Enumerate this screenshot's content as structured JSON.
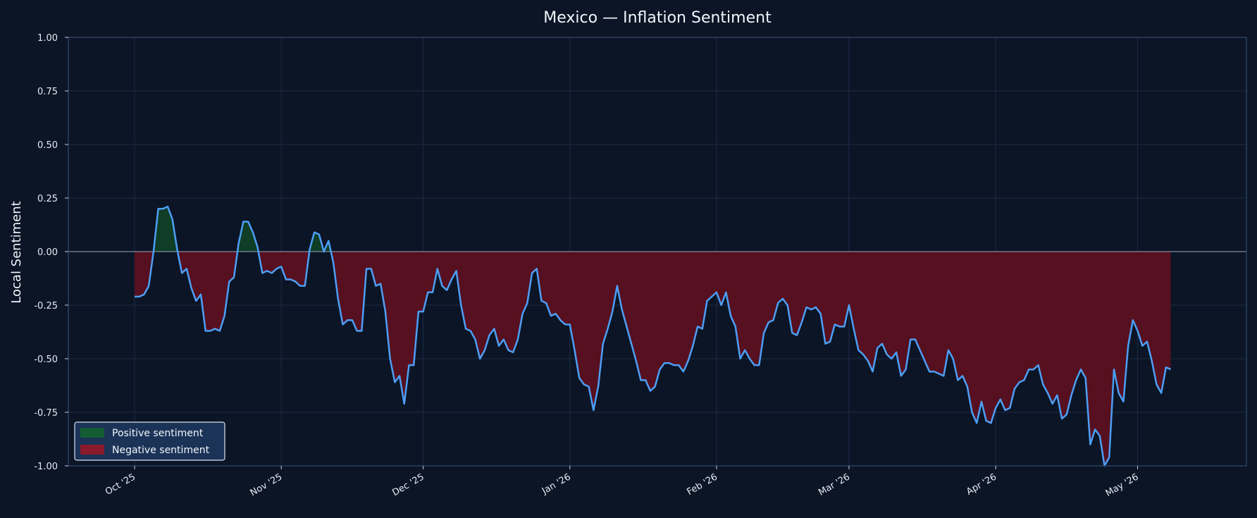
{
  "chart_data": {
    "type": "area",
    "title": "Mexico — Inflation Sentiment",
    "xlabel": "",
    "ylabel": "Local Sentiment",
    "ylim": [
      -1.0,
      1.0
    ],
    "xlim": [
      "2025-09-17",
      "2026-05-24"
    ],
    "y_ticks": [
      1.0,
      0.75,
      0.5,
      0.25,
      0.0,
      -0.25,
      -0.5,
      -0.75,
      -1.0
    ],
    "y_tick_labels": [
      "1.00",
      "0.75",
      "0.50",
      "0.25",
      "0.00",
      "-0.25",
      "-0.50",
      "-0.75",
      "-1.00"
    ],
    "x_ticks": [
      {
        "date": "2025-10-01",
        "label": "Oct '25"
      },
      {
        "date": "2025-11-01",
        "label": "Nov '25"
      },
      {
        "date": "2025-12-01",
        "label": "Dec '25"
      },
      {
        "date": "2026-01-01",
        "label": "Jan '26"
      },
      {
        "date": "2026-02-01",
        "label": "Feb '26"
      },
      {
        "date": "2026-03-01",
        "label": "Mar '26"
      },
      {
        "date": "2026-04-01",
        "label": "Apr '26"
      },
      {
        "date": "2026-05-01",
        "label": "May '26"
      }
    ],
    "grid": true,
    "zero_line": true,
    "legend_position": "lower-left",
    "legend": [
      {
        "label": "Positive sentiment",
        "color": "#145c33"
      },
      {
        "label": "Negative sentiment",
        "color": "#8a1a2c"
      }
    ],
    "colors": {
      "line": "#4d9ef5",
      "positive_fill": "#0f3d26",
      "negative_fill": "#56101f",
      "background": "#0b1526",
      "grid": "#1c2c46",
      "axis": "#2a3f60",
      "zero_line": "#9aa6b8"
    },
    "start_date": "2025-10-01",
    "series": [
      {
        "values": [
          -0.21,
          -0.21,
          -0.2,
          -0.16,
          0.0,
          0.2,
          0.2,
          0.21,
          0.15,
          0.01,
          -0.1,
          -0.08,
          -0.17,
          -0.23,
          -0.2,
          -0.37,
          -0.37,
          -0.36,
          -0.37,
          -0.3,
          -0.14,
          -0.12,
          0.04,
          0.14,
          0.14,
          0.09,
          0.02,
          -0.1,
          -0.09,
          -0.1,
          -0.08,
          -0.07,
          -0.13,
          -0.13,
          -0.14,
          -0.16,
          -0.16,
          0.01,
          0.09,
          0.08,
          0.0,
          0.05,
          -0.05,
          -0.22,
          -0.34,
          -0.32,
          -0.32,
          -0.37,
          -0.37,
          -0.08,
          -0.08,
          -0.16,
          -0.15,
          -0.28,
          -0.5,
          -0.61,
          -0.58,
          -0.71,
          -0.53,
          -0.53,
          -0.28,
          -0.28,
          -0.19,
          -0.19,
          -0.08,
          -0.16,
          -0.18,
          -0.13,
          -0.09,
          -0.25,
          -0.36,
          -0.37,
          -0.41,
          -0.5,
          -0.46,
          -0.39,
          -0.36,
          -0.44,
          -0.41,
          -0.46,
          -0.47,
          -0.41,
          -0.29,
          -0.24,
          -0.1,
          -0.08,
          -0.23,
          -0.24,
          -0.3,
          -0.29,
          -0.32,
          -0.34,
          -0.34,
          -0.46,
          -0.59,
          -0.62,
          -0.63,
          -0.74,
          -0.63,
          -0.43,
          -0.36,
          -0.28,
          -0.16,
          -0.27,
          -0.35,
          -0.43,
          -0.51,
          -0.6,
          -0.6,
          -0.65,
          -0.63,
          -0.55,
          -0.52,
          -0.52,
          -0.53,
          -0.53,
          -0.56,
          -0.51,
          -0.44,
          -0.35,
          -0.36,
          -0.23,
          -0.21,
          -0.19,
          -0.25,
          -0.19,
          -0.3,
          -0.35,
          -0.5,
          -0.46,
          -0.5,
          -0.53,
          -0.53,
          -0.38,
          -0.33,
          -0.32,
          -0.24,
          -0.22,
          -0.25,
          -0.38,
          -0.39,
          -0.33,
          -0.26,
          -0.27,
          -0.26,
          -0.29,
          -0.43,
          -0.42,
          -0.34,
          -0.35,
          -0.35,
          -0.25,
          -0.36,
          -0.46,
          -0.48,
          -0.51,
          -0.56,
          -0.45,
          -0.43,
          -0.48,
          -0.5,
          -0.47,
          -0.58,
          -0.55,
          -0.41,
          -0.41,
          -0.46,
          -0.51,
          -0.56,
          -0.56,
          -0.57,
          -0.58,
          -0.46,
          -0.5,
          -0.6,
          -0.58,
          -0.63,
          -0.75,
          -0.8,
          -0.7,
          -0.79,
          -0.8,
          -0.73,
          -0.69,
          -0.74,
          -0.73,
          -0.64,
          -0.61,
          -0.6,
          -0.55,
          -0.55,
          -0.53,
          -0.62,
          -0.66,
          -0.71,
          -0.67,
          -0.78,
          -0.76,
          -0.67,
          -0.6,
          -0.55,
          -0.59,
          -0.9,
          -0.83,
          -0.86,
          -1.0,
          -0.96,
          -0.55,
          -0.66,
          -0.7,
          -0.44,
          -0.32,
          -0.37,
          -0.44,
          -0.42,
          -0.51,
          -0.62,
          -0.66,
          -0.54,
          -0.55
        ]
      }
    ]
  }
}
